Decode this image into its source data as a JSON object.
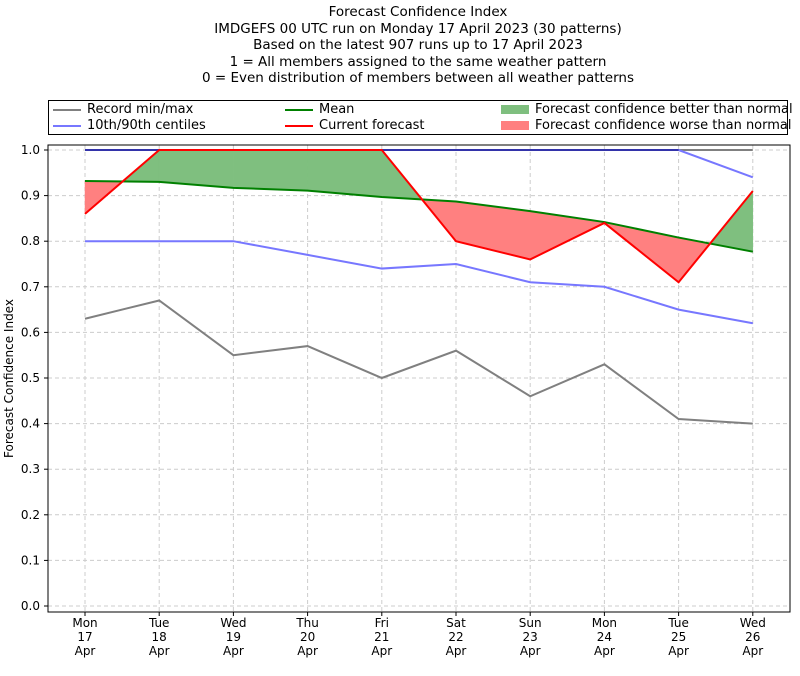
{
  "chart_data": {
    "type": "line",
    "title_lines": [
      "Forecast Confidence Index",
      "IMDGEFS 00 UTC run on Monday 17 April 2023 (30 patterns)",
      "Based on the latest 907 runs up to 17 April 2023",
      "1 = All members assigned to the same weather pattern",
      "0 = Even distribution of members between all weather patterns"
    ],
    "ylabel": "Forecast Confidence Index",
    "xlabel": "",
    "ylim": [
      0,
      1
    ],
    "yticks": [
      "0.0",
      "0.1",
      "0.2",
      "0.3",
      "0.4",
      "0.5",
      "0.6",
      "0.7",
      "0.8",
      "0.9",
      "1.0"
    ],
    "categories": [
      [
        "Mon",
        "17",
        "Apr"
      ],
      [
        "Tue",
        "18",
        "Apr"
      ],
      [
        "Wed",
        "19",
        "Apr"
      ],
      [
        "Thu",
        "20",
        "Apr"
      ],
      [
        "Fri",
        "21",
        "Apr"
      ],
      [
        "Sat",
        "22",
        "Apr"
      ],
      [
        "Sun",
        "23",
        "Apr"
      ],
      [
        "Mon",
        "24",
        "Apr"
      ],
      [
        "Tue",
        "25",
        "Apr"
      ],
      [
        "Wed",
        "26",
        "Apr"
      ]
    ],
    "grid": true,
    "legend_position": "top",
    "series": [
      {
        "name": "Record min/max",
        "color": "#808080",
        "values_min": [
          0.63,
          0.67,
          0.55,
          0.57,
          0.5,
          0.56,
          0.46,
          0.53,
          0.41,
          0.4
        ],
        "values_max": [
          1,
          1,
          1,
          1,
          1,
          1,
          1,
          1,
          1,
          1
        ]
      },
      {
        "name": "10th/90th centiles",
        "color": "#7777ff",
        "values_10": [
          0.8,
          0.8,
          0.8,
          0.77,
          0.74,
          0.75,
          0.71,
          0.7,
          0.65,
          0.62
        ],
        "values_90": [
          1,
          1,
          1,
          1,
          1,
          1,
          1,
          1,
          1,
          0.94
        ]
      },
      {
        "name": "Mean",
        "color": "#008000",
        "values": [
          0.932,
          0.93,
          0.917,
          0.911,
          0.897,
          0.887,
          0.866,
          0.842,
          0.808,
          0.777
        ]
      },
      {
        "name": "Current forecast",
        "color": "#ff0000",
        "values": [
          0.86,
          1.0,
          1.0,
          1.0,
          1.0,
          0.8,
          0.76,
          0.84,
          0.71,
          0.91
        ]
      }
    ],
    "fills": [
      {
        "name": "Forecast confidence better than normal",
        "color": "#7fbf7f"
      },
      {
        "name": "Forecast confidence worse than normal",
        "color": "#ff8080"
      }
    ]
  }
}
